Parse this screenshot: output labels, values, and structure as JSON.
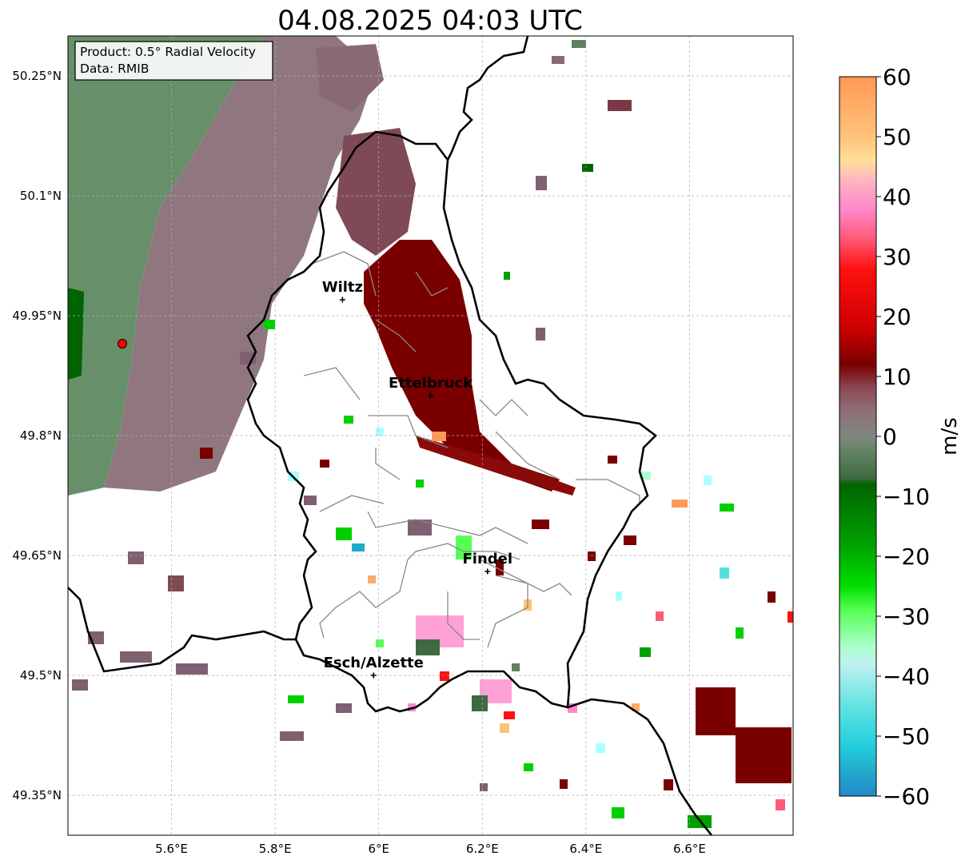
{
  "title": "04.08.2025 04:03 UTC",
  "info_box": {
    "product_line": "Product: 0.5° Radial Velocity",
    "data_line": "Data: RMIB"
  },
  "map": {
    "lon_range": [
      5.4,
      6.8
    ],
    "lat_range": [
      49.3,
      50.3
    ],
    "lon_ticks": [
      {
        "value": 5.6,
        "label": "5.6°E"
      },
      {
        "value": 5.8,
        "label": "5.8°E"
      },
      {
        "value": 6.0,
        "label": "6°E"
      },
      {
        "value": 6.2,
        "label": "6.2°E"
      },
      {
        "value": 6.4,
        "label": "6.4°E"
      },
      {
        "value": 6.6,
        "label": "6.6°E"
      }
    ],
    "lat_ticks": [
      {
        "value": 50.25,
        "label": "50.25°N"
      },
      {
        "value": 50.1,
        "label": "50.1°N"
      },
      {
        "value": 49.95,
        "label": "49.95°N"
      },
      {
        "value": 49.8,
        "label": "49.8°N"
      },
      {
        "value": 49.65,
        "label": "49.65°N"
      },
      {
        "value": 49.5,
        "label": "49.5°N"
      },
      {
        "value": 49.35,
        "label": "49.35°N"
      }
    ],
    "grid": true,
    "radar_site": {
      "lon": 5.505,
      "lat": 49.915,
      "color": "#ff0000"
    },
    "cities": [
      {
        "name": "Wiltz",
        "lon": 5.93,
        "lat": 49.97
      },
      {
        "name": "Ettelbruck",
        "lon": 6.1,
        "lat": 49.85
      },
      {
        "name": "Findel",
        "lon": 6.21,
        "lat": 49.63
      },
      {
        "name": "Esch/Alzette",
        "lon": 5.99,
        "lat": 49.5
      }
    ]
  },
  "colorbar": {
    "label": "m/s",
    "vmin": -60,
    "vmax": 60,
    "ticks": [
      {
        "value": 60,
        "label": "60"
      },
      {
        "value": 50,
        "label": "50"
      },
      {
        "value": 40,
        "label": "40"
      },
      {
        "value": 30,
        "label": "30"
      },
      {
        "value": 20,
        "label": "20"
      },
      {
        "value": 10,
        "label": "10"
      },
      {
        "value": 0,
        "label": "0"
      },
      {
        "value": -10,
        "label": "−10"
      },
      {
        "value": -20,
        "label": "−20"
      },
      {
        "value": -30,
        "label": "−30"
      },
      {
        "value": -40,
        "label": "−40"
      },
      {
        "value": -50,
        "label": "−50"
      },
      {
        "value": -60,
        "label": "−60"
      }
    ],
    "stops": [
      {
        "value": 60,
        "color": "#ff9955"
      },
      {
        "value": 50,
        "color": "#ffc27a"
      },
      {
        "value": 46,
        "color": "#ffe09a"
      },
      {
        "value": 43,
        "color": "#ffb8c0"
      },
      {
        "value": 38,
        "color": "#ff88cc"
      },
      {
        "value": 33,
        "color": "#ff5a78"
      },
      {
        "value": 28,
        "color": "#ff1010"
      },
      {
        "value": 18,
        "color": "#cc0000"
      },
      {
        "value": 12,
        "color": "#7a0000"
      },
      {
        "value": 8,
        "color": "#8a4a55"
      },
      {
        "value": 4,
        "color": "#907078"
      },
      {
        "value": 0,
        "color": "#7f8880"
      },
      {
        "value": -3,
        "color": "#5e8060"
      },
      {
        "value": -7,
        "color": "#3e6a40"
      },
      {
        "value": -8,
        "color": "#006400"
      },
      {
        "value": -18,
        "color": "#00a000"
      },
      {
        "value": -25,
        "color": "#00e000"
      },
      {
        "value": -29,
        "color": "#55ff55"
      },
      {
        "value": -35,
        "color": "#aaffcc"
      },
      {
        "value": -38,
        "color": "#bff0f0"
      },
      {
        "value": -46,
        "color": "#55e0e0"
      },
      {
        "value": -52,
        "color": "#22ccdd"
      },
      {
        "value": -56,
        "color": "#22aacc"
      },
      {
        "value": -60,
        "color": "#2288cc"
      }
    ]
  }
}
